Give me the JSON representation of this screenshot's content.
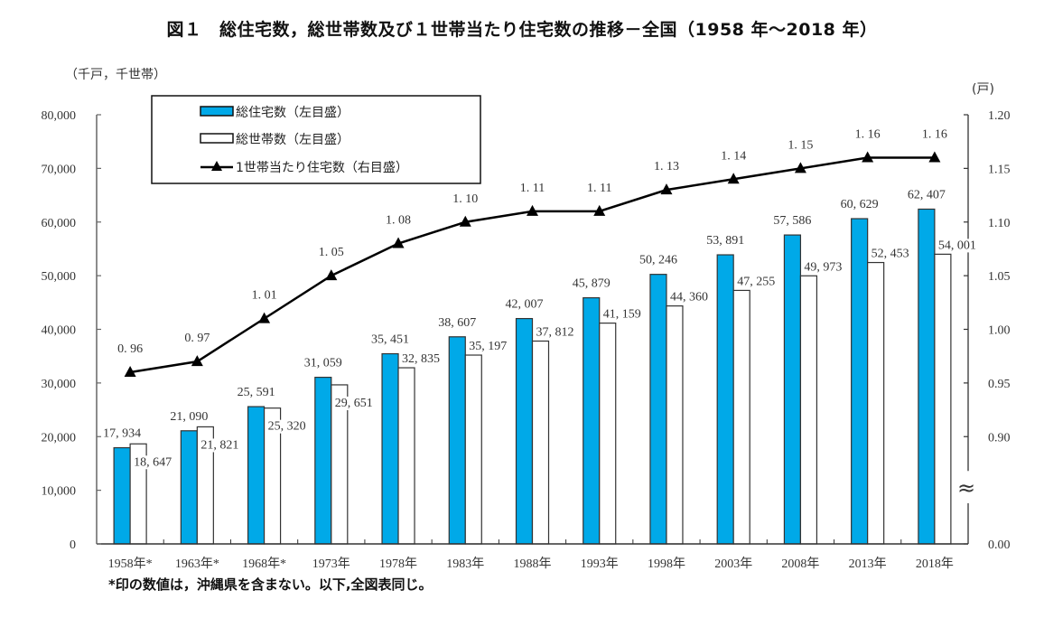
{
  "title": "図１　総住宅数，総世帯数及び１世帯当たり住宅数の推移－全国（1958 年～2018 年）",
  "left_unit": "（千戸，千世帯）",
  "right_unit": "(戸)",
  "footnote": "*印の数値は，沖縄県を含まない。以下,全図表同じ。",
  "colors": {
    "housing_bar": "#00A9E8",
    "household_bar": "#FFFFFF",
    "bar_border": "#333333",
    "line": "#000000",
    "axis": "#666666"
  },
  "chart_data": {
    "type": "bar",
    "title": "図１　総住宅数，総世帯数及び１世帯当たり住宅数の推移－全国（1958 年～2018 年）",
    "xlabel": "",
    "ylabel": "（千戸，千世帯）",
    "y2label": "(戸)",
    "categories": [
      "1958年*",
      "1963年*",
      "1968年*",
      "1973年",
      "1978年",
      "1983年",
      "1988年",
      "1993年",
      "1998年",
      "2003年",
      "2008年",
      "2013年",
      "2018年"
    ],
    "series": [
      {
        "name": "総住宅数（左目盛）",
        "type": "bar",
        "axis": "left",
        "values": [
          17934,
          21090,
          25591,
          31059,
          35451,
          38607,
          42007,
          45879,
          50246,
          53891,
          57586,
          60629,
          62407
        ],
        "labels": [
          "17,934",
          "21,090",
          "25,591",
          "31,059",
          "35,451",
          "38,607",
          "42,007",
          "45,879",
          "50,246",
          "53,891",
          "57,586",
          "60,629",
          "62,407"
        ]
      },
      {
        "name": "総世帯数（左目盛）",
        "type": "bar",
        "axis": "left",
        "values": [
          18647,
          21821,
          25320,
          29651,
          32835,
          35197,
          37812,
          41159,
          44360,
          47255,
          49973,
          52453,
          54001
        ],
        "labels": [
          "18,647",
          "21,821",
          "25,320",
          "29,651",
          "32,835",
          "35,197",
          "37,812",
          "41,159",
          "44,360",
          "47,255",
          "49,973",
          "52,453",
          "54,001"
        ]
      },
      {
        "name": "1世帯当たり住宅数（右目盛）",
        "type": "line",
        "axis": "right",
        "values": [
          0.96,
          0.97,
          1.01,
          1.05,
          1.08,
          1.1,
          1.11,
          1.11,
          1.13,
          1.14,
          1.15,
          1.16,
          1.16
        ],
        "labels": [
          "0.96",
          "0.97",
          "1.01",
          "1.05",
          "1.08",
          "1.10",
          "1.11",
          "1.11",
          "1.13",
          "1.14",
          "1.15",
          "1.16",
          "1.16"
        ]
      }
    ],
    "y_left": {
      "ylim": [
        0,
        80000
      ],
      "ticks": [
        0,
        10000,
        20000,
        30000,
        40000,
        50000,
        60000,
        70000,
        80000
      ],
      "tick_labels": [
        "0",
        "10,000",
        "20,000",
        "30,000",
        "40,000",
        "50,000",
        "60,000",
        "70,000",
        "80,000"
      ]
    },
    "y_right": {
      "ylim": [
        0.0,
        1.2
      ],
      "axis_break": "0.00～0.90",
      "ticks": [
        0.0,
        0.9,
        0.95,
        1.0,
        1.05,
        1.1,
        1.15,
        1.2
      ],
      "tick_labels": [
        "0.00",
        "0.90",
        "0.95",
        "1.00",
        "1.05",
        "1.10",
        "1.15",
        "1.20"
      ],
      "break_symbol": "≈"
    },
    "legend": {
      "position": "top-left",
      "items": [
        "総住宅数（左目盛）",
        "総世帯数（左目盛）",
        "1世帯当たり住宅数（右目盛）"
      ]
    },
    "grid": false
  }
}
